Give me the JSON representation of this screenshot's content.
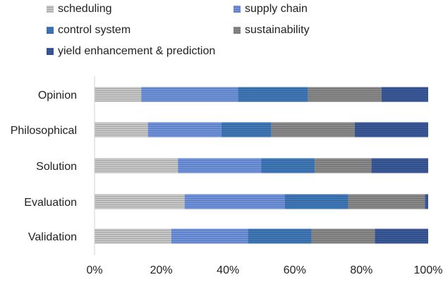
{
  "chart_data": {
    "type": "bar",
    "orientation": "horizontal",
    "stacked": "percent",
    "categories": [
      "Opinion",
      "Philosophical",
      "Solution",
      "Evaluation",
      "Validation"
    ],
    "series": [
      {
        "name": "scheduling",
        "color": "#c8c8c8",
        "values": [
          14,
          16,
          25,
          27,
          23
        ]
      },
      {
        "name": "supply chain",
        "color": "#6f93dc",
        "values": [
          29,
          22,
          25,
          30,
          23
        ]
      },
      {
        "name": "control system",
        "color": "#3f79b9",
        "values": [
          21,
          15,
          16,
          19,
          19
        ]
      },
      {
        "name": "sustainability",
        "color": "#8a8a8a",
        "values": [
          22,
          25,
          17,
          23,
          19
        ]
      },
      {
        "name": "yield enhancement & prediction",
        "color": "#3b5a9c",
        "values": [
          14,
          22,
          17,
          1,
          16
        ]
      }
    ],
    "xlim": [
      0,
      100
    ],
    "x_tick_labels": [
      "0%",
      "20%",
      "40%",
      "60%",
      "80%",
      "100%"
    ],
    "legend_position": "top",
    "grid": false
  }
}
